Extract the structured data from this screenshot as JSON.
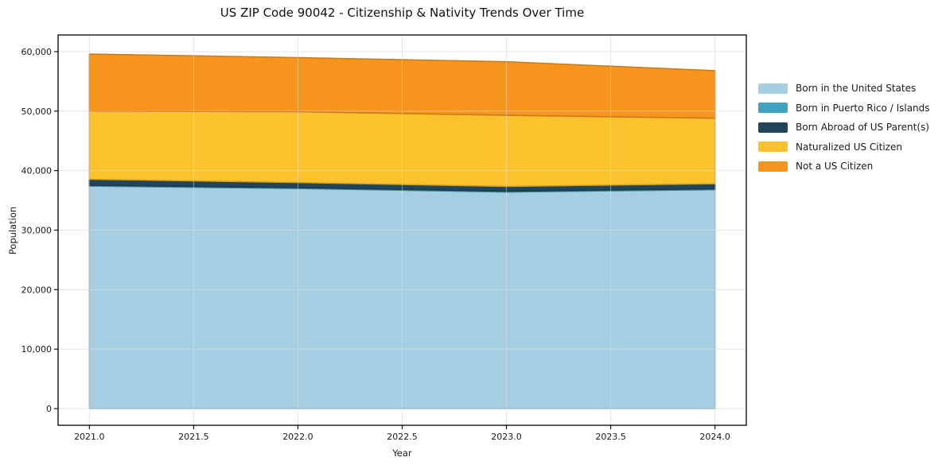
{
  "chart_data": {
    "type": "area",
    "stacked": true,
    "title": "US ZIP Code 90042 - Citizenship & Nativity Trends Over Time",
    "xlabel": "Year",
    "ylabel": "Population",
    "x": [
      2021,
      2022,
      2023,
      2024
    ],
    "series": [
      {
        "name": "Born in the United States",
        "color": "#a6cee3",
        "values": [
          37400,
          37000,
          36400,
          36800
        ]
      },
      {
        "name": "Born in Puerto Rico / Islands",
        "color": "#3ea2c0",
        "values": [
          150,
          150,
          150,
          150
        ]
      },
      {
        "name": "Born Abroad of US Parent(s)",
        "color": "#21455a",
        "values": [
          1000,
          850,
          800,
          850
        ]
      },
      {
        "name": "Naturalized US Citizen",
        "color": "#fcc22d",
        "values": [
          11450,
          11900,
          11950,
          11000
        ]
      },
      {
        "name": "Not a US Citizen",
        "color": "#f7941e",
        "values": [
          9600,
          9100,
          9000,
          8000
        ]
      }
    ],
    "stacked_totals": [
      59600,
      59000,
      58300,
      56800
    ],
    "xlim": [
      2020.85,
      2024.15
    ],
    "ylim": [
      -2800,
      62800
    ],
    "xticks": {
      "values": [
        2021,
        2021.5,
        2022,
        2022.5,
        2023,
        2023.5,
        2024
      ],
      "labels": [
        "2021.0",
        "2021.5",
        "2022.0",
        "2022.5",
        "2023.0",
        "2023.5",
        "2024.0"
      ]
    },
    "yticks": {
      "values": [
        0,
        10000,
        20000,
        30000,
        40000,
        50000,
        60000
      ],
      "labels": [
        "0",
        "10,000",
        "20,000",
        "30,000",
        "40,000",
        "50,000",
        "60,000"
      ]
    },
    "grid": true,
    "legend_position": "outside-right"
  },
  "colors": {
    "background": "#ffffff",
    "grid": "#e7e7e7",
    "spine": "#000000",
    "text": "#1a1a1a"
  }
}
